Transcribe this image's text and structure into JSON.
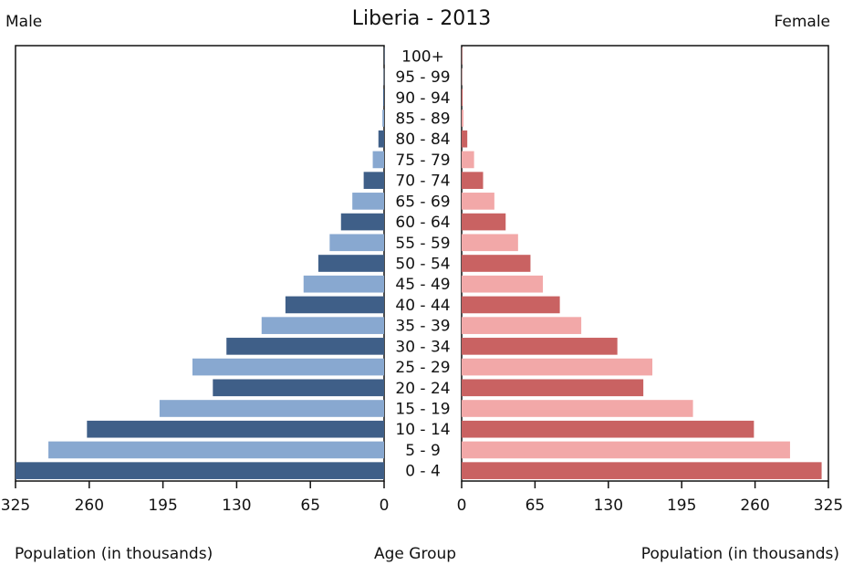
{
  "chart_data": {
    "type": "bar",
    "subtype": "population-pyramid",
    "title": "Liberia - 2013",
    "left_label": "Male",
    "right_label": "Female",
    "xlabel_left": "Population (in thousands)",
    "xlabel_middle": "Age Group",
    "xlabel_right": "Population (in thousands)",
    "xlim": [
      0,
      325
    ],
    "ticks": [
      325,
      260,
      195,
      130,
      65,
      0
    ],
    "categories": [
      "0 - 4",
      "5 - 9",
      "10 - 14",
      "15 - 19",
      "20 - 24",
      "25 - 29",
      "30 - 34",
      "35 - 39",
      "40 - 44",
      "45 - 49",
      "50 - 54",
      "55 - 59",
      "60 - 64",
      "65 - 69",
      "70 - 74",
      "75 - 79",
      "80 - 84",
      "85 - 89",
      "90 - 94",
      "95 - 99",
      "100+"
    ],
    "series": [
      {
        "name": "Male",
        "values": [
          325,
          296,
          262,
          198,
          151,
          169,
          139,
          108,
          87,
          71,
          58,
          48,
          38,
          28,
          18,
          10,
          5,
          1.5,
          0.8,
          0.3,
          0.1
        ]
      },
      {
        "name": "Female",
        "values": [
          319,
          291,
          259,
          205,
          161,
          169,
          138,
          106,
          87,
          72,
          61,
          50,
          39,
          29,
          19,
          11,
          5,
          1.6,
          0.9,
          0.3,
          0.1
        ]
      }
    ],
    "colors": {
      "male_dark": "#3f5f88",
      "male_light": "#88a8d0",
      "female_dark": "#c96262",
      "female_light": "#f2a8a8",
      "axis": "#111111"
    },
    "grid": false
  }
}
